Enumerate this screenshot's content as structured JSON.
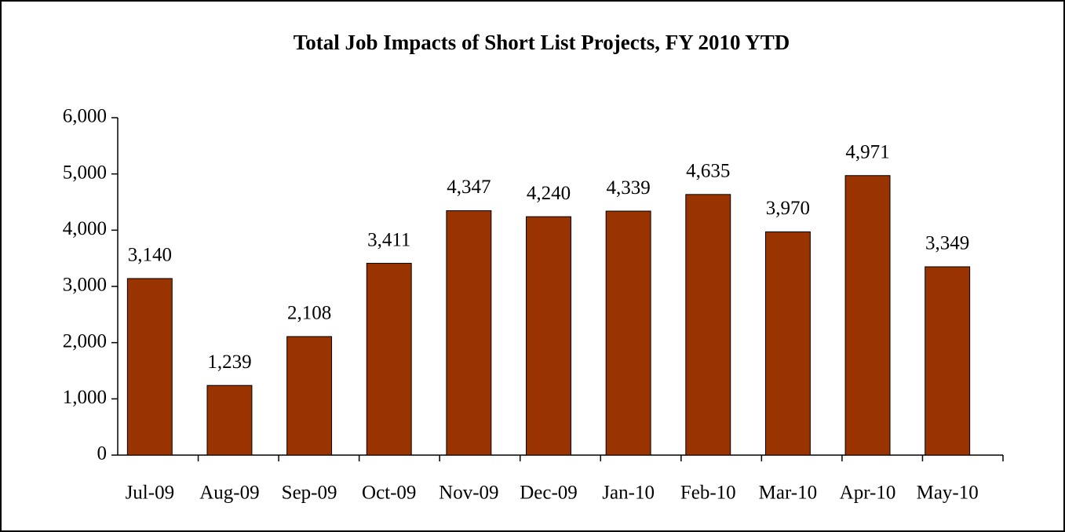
{
  "chart_data": {
    "type": "bar",
    "title": "Total Job Impacts of Short List Projects, FY 2010 YTD",
    "categories": [
      "Jul-09",
      "Aug-09",
      "Sep-09",
      "Oct-09",
      "Nov-09",
      "Dec-09",
      "Jan-10",
      "Feb-10",
      "Mar-10",
      "Apr-10",
      "May-10"
    ],
    "values": [
      3140,
      1239,
      2108,
      3411,
      4347,
      4240,
      4339,
      4635,
      3970,
      4971,
      3349
    ],
    "value_labels": [
      "3,140",
      "1,239",
      "2,108",
      "3,411",
      "4,347",
      "4,240",
      "4,339",
      "4,635",
      "3,970",
      "4,971",
      "3,349"
    ],
    "color": "#993300",
    "ylim": [
      0,
      6000
    ],
    "yticks": [
      0,
      {
        "value": 1000,
        "label": "1,000"
      },
      {
        "value": 2000,
        "label": "2,000"
      },
      {
        "value": 3000,
        "label": "3,000"
      },
      {
        "value": 4000,
        "label": "4,000"
      },
      {
        "value": 5000,
        "label": "5,000"
      },
      {
        "value": 6000,
        "label": "6,000"
      }
    ],
    "grid": false
  }
}
